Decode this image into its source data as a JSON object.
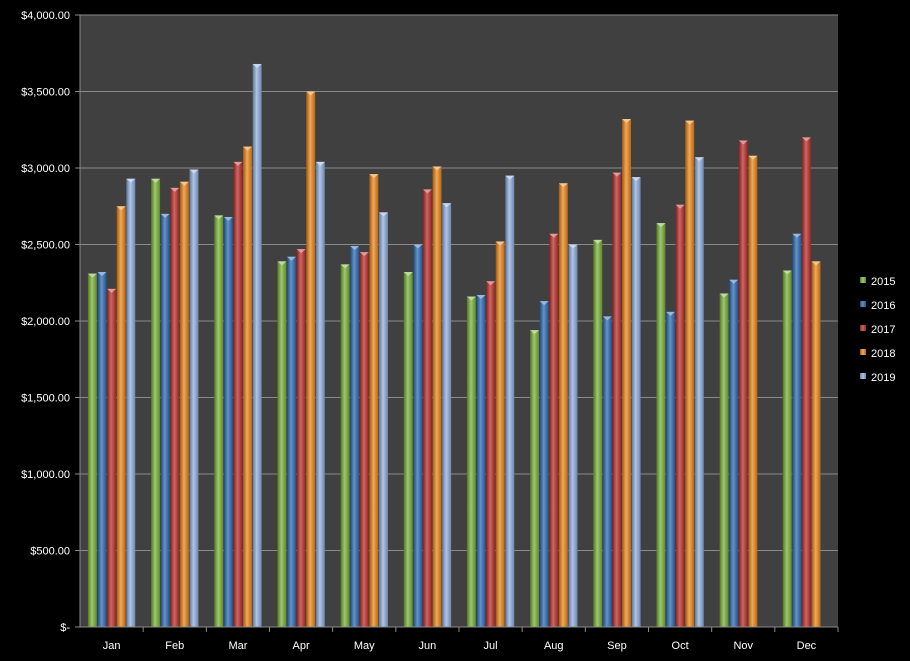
{
  "chart_data": {
    "type": "bar",
    "title": "",
    "xlabel": "",
    "ylabel": "",
    "ylim": [
      0,
      4000
    ],
    "y_tick_labels": [
      "$-",
      "$500.00",
      "$1,000.00",
      "$1,500.00",
      "$2,000.00",
      "$2,500.00",
      "$3,000.00",
      "$3,500.00",
      "$4,000.00"
    ],
    "y_tick_values": [
      0,
      500,
      1000,
      1500,
      2000,
      2500,
      3000,
      3500,
      4000
    ],
    "categories": [
      "Jan",
      "Feb",
      "Mar",
      "Apr",
      "May",
      "Jun",
      "Jul",
      "Aug",
      "Sep",
      "Oct",
      "Nov",
      "Dec"
    ],
    "series": [
      {
        "name": "2015",
        "color": "#7cb53a",
        "values": [
          2310,
          2930,
          2690,
          2390,
          2370,
          2320,
          2160,
          1940,
          2530,
          2640,
          2180,
          2330
        ]
      },
      {
        "name": "2016",
        "color": "#2f6fb8",
        "values": [
          2320,
          2700,
          2680,
          2420,
          2490,
          2500,
          2170,
          2130,
          2030,
          2060,
          2270,
          2570
        ]
      },
      {
        "name": "2017",
        "color": "#c0322f",
        "values": [
          2210,
          2870,
          3040,
          2470,
          2450,
          2860,
          2260,
          2570,
          2970,
          2760,
          3180,
          3200
        ]
      },
      {
        "name": "2018",
        "color": "#f08a1c",
        "values": [
          2750,
          2910,
          3140,
          3500,
          2960,
          3010,
          2520,
          2900,
          3320,
          3310,
          3080,
          2390
        ]
      },
      {
        "name": "2019",
        "color": "#93b2e2",
        "values": [
          2930,
          2990,
          3680,
          3040,
          2710,
          2770,
          2950,
          2500,
          2940,
          3070,
          null,
          null
        ]
      }
    ],
    "legend_position": "right",
    "grid": true,
    "plot_background": "#404040",
    "page_background": "#000000"
  }
}
